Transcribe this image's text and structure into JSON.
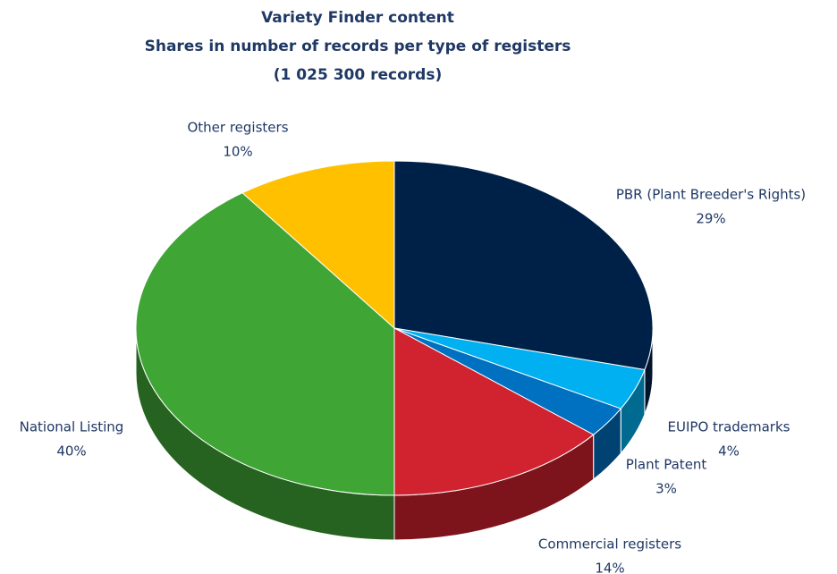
{
  "chart_data": {
    "type": "pie",
    "title": "Variety Finder content",
    "subtitle": [
      "Shares in number of records per type of registers",
      "(1 025 300 records)"
    ],
    "categories": [
      "PBR (Plant Breeder's Rights)",
      "EUIPO trademarks",
      "Plant Patent",
      "Commercial registers",
      "National Listing",
      "Other registers"
    ],
    "values": [
      29,
      4,
      3,
      14,
      40,
      10
    ],
    "value_labels": [
      "29%",
      "4%",
      "3%",
      "14%",
      "40%",
      "10%"
    ],
    "colors": [
      "#002147",
      "#00b0f0",
      "#0070c0",
      "#d0222f",
      "#3fa535",
      "#ffc000"
    ]
  }
}
